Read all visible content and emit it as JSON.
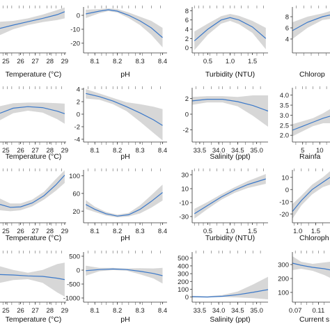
{
  "chart_data": [
    {
      "type": "line",
      "xlabel": "Temperature (°C)",
      "x_ticks": [
        25,
        26,
        27,
        28,
        29
      ],
      "xlim": [
        24.6,
        29.1
      ],
      "y_ticks": [],
      "ylim": [
        0,
        10
      ],
      "series": [
        {
          "x": [
            24.6,
            25.5,
            26.5,
            27.5,
            28.5,
            29
          ],
          "y": [
            5.2,
            6.0,
            6.8,
            7.6,
            8.5,
            9.2
          ],
          "lo": [
            3.6,
            5.0,
            6.0,
            6.7,
            7.2,
            7.6
          ],
          "hi": [
            6.8,
            7.0,
            7.6,
            8.5,
            9.6,
            10.2
          ]
        }
      ],
      "rug": [
        24.8,
        25.1,
        25.4,
        25.9,
        26.2,
        26.6,
        27.0,
        27.3,
        27.8,
        28.1,
        28.4,
        28.8
      ]
    },
    {
      "type": "line",
      "xlabel": "pH",
      "x_ticks": [
        "8.1",
        "8.2",
        "8.3",
        "8.4"
      ],
      "xlim": [
        8.05,
        8.42
      ],
      "y_ticks": [
        0,
        -10,
        -20
      ],
      "ylim": [
        -25,
        5
      ],
      "series": [
        {
          "x": [
            8.06,
            8.12,
            8.16,
            8.2,
            8.25,
            8.3,
            8.35,
            8.4
          ],
          "y": [
            1,
            3,
            4,
            3,
            0,
            -4,
            -9,
            -16
          ],
          "lo": [
            -2,
            1.5,
            3,
            2,
            -2,
            -7,
            -14,
            -23
          ],
          "hi": [
            4,
            4.5,
            5,
            4.5,
            2,
            -1,
            -4,
            -9
          ]
        }
      ],
      "rug": [
        8.07,
        8.1,
        8.13,
        8.15,
        8.18,
        8.2,
        8.22,
        8.25,
        8.28,
        8.31,
        8.35,
        8.39
      ]
    },
    {
      "type": "line",
      "xlabel": "Turbidity (NTU)",
      "x_ticks": [
        "0.5",
        "1.0",
        "1.5"
      ],
      "xlim": [
        0.15,
        1.85
      ],
      "y_ticks": [
        0,
        2,
        4,
        6,
        8
      ],
      "ylim": [
        -0.5,
        8.5
      ],
      "series": [
        {
          "x": [
            0.2,
            0.5,
            0.8,
            1.0,
            1.2,
            1.5,
            1.8
          ],
          "y": [
            1.5,
            4.0,
            6.0,
            6.5,
            6.0,
            4.5,
            2.0
          ],
          "lo": [
            -0.5,
            2.8,
            5.2,
            5.8,
            5.1,
            3.2,
            -0.3
          ],
          "hi": [
            3.5,
            5.2,
            6.8,
            7.3,
            6.9,
            5.8,
            4.3
          ]
        }
      ],
      "rug": [
        0.2,
        0.3,
        0.4,
        0.55,
        0.7,
        0.85,
        1.0,
        1.1,
        1.25,
        1.4,
        1.6,
        1.75
      ]
    },
    {
      "type": "line",
      "xlabel": "Chlorop",
      "x_ticks": [],
      "xlim": [
        0,
        1
      ],
      "y_ticks": [
        8,
        6,
        4
      ],
      "ylim": [
        2,
        9.5
      ],
      "series": [
        {
          "x": [
            0,
            0.4,
            0.8,
            1
          ],
          "y": [
            5.5,
            7.0,
            8.0,
            8.3
          ],
          "lo": [
            4.0,
            6.0,
            7.4,
            7.6
          ],
          "hi": [
            7.0,
            8.0,
            8.6,
            9.0
          ]
        }
      ],
      "rug": [
        0.1,
        0.3,
        0.5,
        0.7,
        0.9
      ]
    },
    {
      "type": "line",
      "xlabel": "Temperature (°C)",
      "x_ticks": [
        25,
        26,
        27,
        28,
        29
      ],
      "xlim": [
        24.6,
        29.1
      ],
      "y_ticks": [],
      "ylim": [
        0,
        10
      ],
      "series": [
        {
          "x": [
            24.6,
            25.5,
            26.5,
            27.5,
            28.5,
            29
          ],
          "y": [
            5.2,
            6.2,
            6.5,
            6.3,
            5.6,
            5.1
          ],
          "lo": [
            3.8,
            5.2,
            5.7,
            5.3,
            4.0,
            3.1
          ],
          "hi": [
            6.6,
            7.2,
            7.3,
            7.3,
            7.2,
            7.1
          ]
        }
      ],
      "rug": [
        24.8,
        25.1,
        25.4,
        25.9,
        26.2,
        26.6,
        27.0,
        27.3,
        27.8,
        28.1,
        28.4,
        28.8
      ]
    },
    {
      "type": "line",
      "xlabel": "pH",
      "x_ticks": [
        "8.1",
        "8.2",
        "8.3",
        "8.4"
      ],
      "xlim": [
        8.05,
        8.42
      ],
      "y_ticks": [
        4,
        2,
        0,
        -2,
        -4
      ],
      "ylim": [
        -4,
        4
      ],
      "series": [
        {
          "x": [
            8.06,
            8.12,
            8.18,
            8.24,
            8.3,
            8.36,
            8.4
          ],
          "y": [
            3.3,
            2.8,
            2.1,
            1.2,
            0.2,
            -0.9,
            -1.8
          ],
          "lo": [
            2.5,
            2.3,
            1.6,
            0.5,
            -1.2,
            -3.0,
            -4.2
          ],
          "hi": [
            4.0,
            3.3,
            2.6,
            1.9,
            1.6,
            1.2,
            0.8
          ]
        }
      ],
      "rug": [
        8.07,
        8.1,
        8.13,
        8.15,
        8.18,
        8.2,
        8.22,
        8.25,
        8.28,
        8.31,
        8.35,
        8.39
      ]
    },
    {
      "type": "line",
      "xlabel": "Salinity (ppt)",
      "x_ticks": [
        "33.5",
        "34.0",
        "34.5",
        "35.0"
      ],
      "xlim": [
        33.3,
        35.3
      ],
      "y_ticks": [
        2,
        0,
        -2
      ],
      "ylim": [
        -3.2,
        3.2
      ],
      "series": [
        {
          "x": [
            33.3,
            33.7,
            34.1,
            34.5,
            34.9,
            35.3
          ],
          "y": [
            1.7,
            1.9,
            1.9,
            1.6,
            1.1,
            0.4
          ],
          "lo": [
            1.2,
            1.5,
            1.5,
            1.0,
            -0.2,
            -1.6
          ],
          "hi": [
            2.2,
            2.3,
            2.3,
            2.2,
            2.4,
            2.4
          ]
        }
      ],
      "rug": [
        33.4,
        33.6,
        33.8,
        34.0,
        34.1,
        34.3,
        34.5,
        34.7,
        34.9,
        35.1
      ]
    },
    {
      "type": "line",
      "xlabel": "Rainfa",
      "x_ticks": [
        5,
        10
      ],
      "xlim": [
        2,
        13
      ],
      "y_ticks": [
        "4.0",
        "3.5",
        "3.0",
        "2.5",
        "2.0"
      ],
      "ylim": [
        1.8,
        4.3
      ],
      "series": [
        {
          "x": [
            2,
            5,
            8,
            11,
            13
          ],
          "y": [
            2.25,
            2.45,
            2.65,
            2.85,
            2.95
          ],
          "lo": [
            1.95,
            2.2,
            2.45,
            2.6,
            2.6
          ],
          "hi": [
            2.55,
            2.7,
            2.85,
            3.1,
            3.3
          ]
        }
      ],
      "rug": [
        3,
        5,
        6,
        8,
        10,
        12
      ]
    },
    {
      "type": "line",
      "xlabel": "Temperature (°C)",
      "x_ticks": [
        25,
        26,
        27,
        28,
        29
      ],
      "xlim": [
        24.6,
        29.1
      ],
      "y_ticks": [],
      "ylim": [
        0,
        10
      ],
      "series": [
        {
          "x": [
            24.6,
            25.3,
            26.0,
            26.8,
            27.6,
            28.4,
            29
          ],
          "y": [
            3.2,
            2.6,
            2.7,
            3.5,
            5.0,
            7.2,
            9.2
          ],
          "lo": [
            2.0,
            1.8,
            2.0,
            2.8,
            4.2,
            6.0,
            7.6
          ],
          "hi": [
            4.4,
            3.4,
            3.4,
            4.2,
            5.8,
            8.4,
            10.2
          ]
        }
      ],
      "rug": [
        24.8,
        25.1,
        25.4,
        25.9,
        26.2,
        26.6,
        27.0,
        27.3,
        27.8,
        28.1,
        28.4,
        28.8
      ]
    },
    {
      "type": "line",
      "xlabel": "pH",
      "x_ticks": [
        "8.1",
        "8.2",
        "8.3",
        "8.4"
      ],
      "xlim": [
        8.05,
        8.42
      ],
      "y_ticks": [
        100,
        60,
        20
      ],
      "ylim": [
        0,
        110
      ],
      "series": [
        {
          "x": [
            8.06,
            8.1,
            8.15,
            8.2,
            8.25,
            8.3,
            8.35,
            8.4
          ],
          "y": [
            35,
            24,
            14,
            9,
            12,
            24,
            42,
            62
          ],
          "lo": [
            25,
            18,
            10,
            6,
            8,
            15,
            28,
            44
          ],
          "hi": [
            45,
            30,
            18,
            12,
            16,
            33,
            56,
            80
          ]
        }
      ],
      "rug": [
        8.07,
        8.1,
        8.13,
        8.15,
        8.18,
        8.2,
        8.22,
        8.25,
        8.28,
        8.31,
        8.35,
        8.39
      ]
    },
    {
      "type": "line",
      "xlabel": "Turbidity (NTU)",
      "x_ticks": [
        "0.5",
        "1.0",
        "1.5"
      ],
      "xlim": [
        0.15,
        1.85
      ],
      "y_ticks": [
        30,
        10,
        -10,
        -30
      ],
      "ylim": [
        -35,
        35
      ],
      "series": [
        {
          "x": [
            0.2,
            0.5,
            0.8,
            1.1,
            1.4,
            1.8
          ],
          "y": [
            -26,
            -14,
            -2,
            8,
            16,
            24
          ],
          "lo": [
            -33,
            -19,
            -6,
            4,
            11,
            17
          ],
          "hi": [
            -19,
            -9,
            2,
            12,
            21,
            31
          ]
        }
      ],
      "rug": [
        0.2,
        0.3,
        0.4,
        0.55,
        0.7,
        0.85,
        1.0,
        1.1,
        1.25,
        1.4,
        1.6,
        1.75
      ]
    },
    {
      "type": "line",
      "xlabel": "Chloroph",
      "x_ticks": [
        "1.0",
        "1.5"
      ],
      "xlim": [
        0.85,
        1.9
      ],
      "y_ticks": [
        10,
        0,
        -10,
        -20
      ],
      "ylim": [
        -25,
        15
      ],
      "series": [
        {
          "x": [
            0.85,
            1.1,
            1.4,
            1.7,
            1.9
          ],
          "y": [
            -18,
            -9,
            0,
            6,
            10
          ],
          "lo": [
            -24,
            -13,
            -4,
            2,
            4
          ],
          "hi": [
            -12,
            -5,
            4,
            10,
            15
          ]
        }
      ],
      "rug": [
        0.9,
        1.1,
        1.3,
        1.5,
        1.7
      ]
    },
    {
      "type": "line",
      "xlabel": "Temperature (°C)",
      "x_ticks": [
        25,
        26,
        27,
        28,
        29
      ],
      "xlim": [
        24.6,
        29.1
      ],
      "y_ticks": [],
      "ylim": [
        0,
        10
      ],
      "series": [
        {
          "x": [
            24.6,
            25.5,
            26.5,
            27.5,
            28.5,
            29
          ],
          "y": [
            5.4,
            5.3,
            5.1,
            5.0,
            4.6,
            4.3
          ],
          "lo": [
            3.6,
            4.2,
            4.4,
            3.6,
            1.5,
            0.6
          ],
          "hi": [
            7.2,
            6.4,
            5.8,
            6.4,
            7.7,
            8.0
          ]
        }
      ],
      "rug": [
        24.8,
        25.1,
        25.4,
        25.9,
        26.2,
        26.6,
        27.0,
        27.3,
        27.8,
        28.1,
        28.4,
        28.8
      ]
    },
    {
      "type": "line",
      "xlabel": "pH",
      "x_ticks": [
        "8.1",
        "8.2",
        "8.3",
        "8.4"
      ],
      "xlim": [
        8.05,
        8.42
      ],
      "y_ticks": [
        500,
        0,
        -500,
        -1000
      ],
      "ylim": [
        -1050,
        600
      ],
      "series": [
        {
          "x": [
            8.06,
            8.12,
            8.18,
            8.24,
            8.3,
            8.36,
            8.4
          ],
          "y": [
            -20,
            20,
            40,
            20,
            -40,
            -120,
            -200
          ],
          "lo": [
            -200,
            -40,
            0,
            -20,
            -150,
            -300,
            -480
          ],
          "hi": [
            160,
            80,
            80,
            60,
            70,
            60,
            80
          ]
        }
      ],
      "rug": [
        8.07,
        8.1,
        8.13,
        8.15,
        8.18,
        8.2,
        8.22,
        8.25,
        8.28,
        8.31,
        8.35,
        8.39
      ]
    },
    {
      "type": "line",
      "xlabel": "Salinity (ppt)",
      "x_ticks": [
        "33.5",
        "34.0",
        "34.5",
        "35.0"
      ],
      "xlim": [
        33.3,
        35.3
      ],
      "y_ticks": [
        500,
        400,
        300,
        200,
        100,
        0
      ],
      "ylim": [
        -30,
        560
      ],
      "series": [
        {
          "x": [
            33.3,
            33.7,
            34.1,
            34.5,
            34.9,
            35.3
          ],
          "y": [
            5,
            0,
            10,
            30,
            60,
            95
          ],
          "lo": [
            -5,
            -5,
            0,
            -5,
            -15,
            -30
          ],
          "hi": [
            15,
            10,
            25,
            70,
            160,
            260
          ]
        }
      ],
      "rug": [
        33.4,
        33.6,
        33.8,
        34.0,
        34.1,
        34.3,
        34.5,
        34.7,
        34.9,
        35.1
      ]
    },
    {
      "type": "line",
      "xlabel": "Current s",
      "x_ticks": [
        "0.07",
        "0.11"
      ],
      "xlim": [
        0.065,
        0.13
      ],
      "y_ticks": [
        300,
        200,
        100
      ],
      "ylim": [
        50,
        380
      ],
      "series": [
        {
          "x": [
            0.065,
            0.08,
            0.1,
            0.12,
            0.13
          ],
          "y": [
            310,
            295,
            280,
            270,
            262
          ],
          "lo": [
            260,
            270,
            255,
            225,
            205
          ],
          "hi": [
            360,
            320,
            305,
            315,
            320
          ]
        }
      ],
      "rug": [
        0.07,
        0.08,
        0.09,
        0.1,
        0.11,
        0.12
      ]
    }
  ]
}
